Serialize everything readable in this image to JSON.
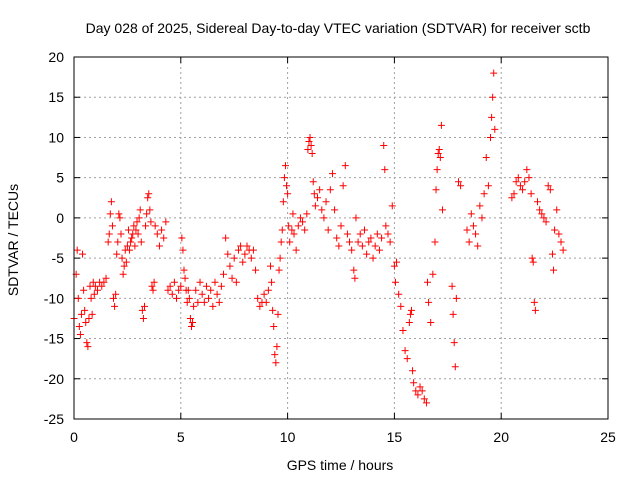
{
  "chart_data": {
    "type": "scatter",
    "title": "Day 028 of 2025, Sidereal Day-to-day VTEC variation (SDTVAR) for receiver sctb",
    "xlabel": "GPS time / hours",
    "ylabel": "SDTVAR / TECUs",
    "xlim": [
      0,
      25
    ],
    "ylim": [
      -25,
      20
    ],
    "xticks": [
      0,
      5,
      10,
      15,
      20,
      25
    ],
    "yticks": [
      -25,
      -20,
      -15,
      -10,
      -5,
      0,
      5,
      10,
      15,
      20
    ],
    "grid": true,
    "marker": "+",
    "color": "#ff0000",
    "series": [
      {
        "name": "SDTVAR",
        "points": [
          [
            0.0,
            -12.5
          ],
          [
            0.1,
            -7.0
          ],
          [
            0.15,
            -4.0
          ],
          [
            0.2,
            -10.0
          ],
          [
            0.25,
            -13.5
          ],
          [
            0.3,
            -14.5
          ],
          [
            0.35,
            -12.0
          ],
          [
            0.4,
            -4.5
          ],
          [
            0.45,
            -9.0
          ],
          [
            0.5,
            -11.5
          ],
          [
            0.55,
            -13.0
          ],
          [
            0.6,
            -15.5
          ],
          [
            0.65,
            -16.0
          ],
          [
            0.7,
            -12.5
          ],
          [
            0.75,
            -8.5
          ],
          [
            0.8,
            -10.0
          ],
          [
            0.85,
            -12.0
          ],
          [
            0.9,
            -8.0
          ],
          [
            0.95,
            -9.5
          ],
          [
            1.0,
            -8.5
          ],
          [
            1.1,
            -9.0
          ],
          [
            1.2,
            -8.0
          ],
          [
            1.3,
            -8.5
          ],
          [
            1.4,
            -8.0
          ],
          [
            1.5,
            -7.5
          ],
          [
            1.6,
            -3.0
          ],
          [
            1.65,
            -2.0
          ],
          [
            1.7,
            0.5
          ],
          [
            1.75,
            2.0
          ],
          [
            1.8,
            -1.0
          ],
          [
            1.85,
            -10.0
          ],
          [
            1.9,
            -11.0
          ],
          [
            1.95,
            -9.5
          ],
          [
            2.0,
            -4.5
          ],
          [
            2.05,
            -3.0
          ],
          [
            2.1,
            0.5
          ],
          [
            2.15,
            0.0
          ],
          [
            2.2,
            -2.0
          ],
          [
            2.25,
            -5.0
          ],
          [
            2.3,
            -7.0
          ],
          [
            2.35,
            -6.0
          ],
          [
            2.4,
            -4.0
          ],
          [
            2.45,
            -5.5
          ],
          [
            2.5,
            -3.5
          ],
          [
            2.55,
            -1.5
          ],
          [
            2.6,
            -4.0
          ],
          [
            2.65,
            -3.0
          ],
          [
            2.7,
            -2.5
          ],
          [
            2.75,
            -2.0
          ],
          [
            2.8,
            -1.0
          ],
          [
            2.85,
            -3.5
          ],
          [
            2.9,
            -1.5
          ],
          [
            2.95,
            -0.5
          ],
          [
            3.0,
            -2.0
          ],
          [
            3.05,
            0.0
          ],
          [
            3.1,
            1.0
          ],
          [
            3.15,
            -3.0
          ],
          [
            3.2,
            -11.5
          ],
          [
            3.25,
            -12.5
          ],
          [
            3.3,
            -11.0
          ],
          [
            3.35,
            -1.0
          ],
          [
            3.4,
            0.5
          ],
          [
            3.45,
            2.5
          ],
          [
            3.5,
            3.0
          ],
          [
            3.55,
            1.0
          ],
          [
            3.6,
            -0.5
          ],
          [
            3.65,
            -8.5
          ],
          [
            3.7,
            -9.0
          ],
          [
            3.75,
            -8.0
          ],
          [
            3.8,
            -1.0
          ],
          [
            3.9,
            -2.0
          ],
          [
            4.0,
            -3.5
          ],
          [
            4.1,
            -1.5
          ],
          [
            4.2,
            -2.5
          ],
          [
            4.3,
            -0.5
          ],
          [
            4.4,
            -9.0
          ],
          [
            4.5,
            -8.5
          ],
          [
            4.6,
            -9.5
          ],
          [
            4.7,
            -8.0
          ],
          [
            4.8,
            -10.0
          ],
          [
            4.9,
            -9.0
          ],
          [
            5.0,
            -8.5
          ],
          [
            5.05,
            -2.5
          ],
          [
            5.1,
            -4.0
          ],
          [
            5.15,
            -6.5
          ],
          [
            5.2,
            -7.5
          ],
          [
            5.25,
            -9.0
          ],
          [
            5.3,
            -10.5
          ],
          [
            5.35,
            -9.0
          ],
          [
            5.4,
            -10.0
          ],
          [
            5.45,
            -12.5
          ],
          [
            5.5,
            -13.5
          ],
          [
            5.55,
            -13.0
          ],
          [
            5.6,
            -11.0
          ],
          [
            5.7,
            -9.0
          ],
          [
            5.8,
            -10.5
          ],
          [
            5.9,
            -8.0
          ],
          [
            6.0,
            -9.5
          ],
          [
            6.1,
            -10.5
          ],
          [
            6.2,
            -8.5
          ],
          [
            6.3,
            -10.0
          ],
          [
            6.4,
            -9.0
          ],
          [
            6.5,
            -11.0
          ],
          [
            6.6,
            -8.0
          ],
          [
            6.7,
            -9.5
          ],
          [
            6.8,
            -10.5
          ],
          [
            6.9,
            -8.5
          ],
          [
            7.0,
            -7.0
          ],
          [
            7.1,
            -2.5
          ],
          [
            7.2,
            -4.5
          ],
          [
            7.3,
            -6.0
          ],
          [
            7.4,
            -7.5
          ],
          [
            7.5,
            -5.0
          ],
          [
            7.6,
            -8.0
          ],
          [
            7.7,
            -4.0
          ],
          [
            7.8,
            -3.5
          ],
          [
            7.9,
            -5.5
          ],
          [
            8.0,
            -4.5
          ],
          [
            8.1,
            -3.5
          ],
          [
            8.2,
            -4.0
          ],
          [
            8.3,
            -5.0
          ],
          [
            8.4,
            -4.0
          ],
          [
            8.5,
            -6.5
          ],
          [
            8.6,
            -10.0
          ],
          [
            8.7,
            -11.0
          ],
          [
            8.8,
            -10.5
          ],
          [
            8.9,
            -9.5
          ],
          [
            9.0,
            -10.5
          ],
          [
            9.1,
            -9.0
          ],
          [
            9.2,
            -6.0
          ],
          [
            9.25,
            -8.0
          ],
          [
            9.3,
            -11.5
          ],
          [
            9.35,
            -13.5
          ],
          [
            9.4,
            -17.0
          ],
          [
            9.45,
            -18.0
          ],
          [
            9.5,
            -16.0
          ],
          [
            9.55,
            -12.0
          ],
          [
            9.6,
            -6.5
          ],
          [
            9.65,
            -5.0
          ],
          [
            9.7,
            -3.0
          ],
          [
            9.75,
            -1.5
          ],
          [
            9.8,
            2.0
          ],
          [
            9.85,
            5.0
          ],
          [
            9.9,
            6.5
          ],
          [
            9.95,
            4.0
          ],
          [
            10.0,
            3.0
          ],
          [
            10.05,
            -1.0
          ],
          [
            10.1,
            -3.0
          ],
          [
            10.2,
            -1.5
          ],
          [
            10.25,
            0.5
          ],
          [
            10.3,
            -2.0
          ],
          [
            10.4,
            -4.0
          ],
          [
            10.5,
            -1.0
          ],
          [
            10.6,
            0.0
          ],
          [
            10.7,
            -0.5
          ],
          [
            10.8,
            -1.5
          ],
          [
            10.9,
            0.5
          ],
          [
            10.95,
            8.5
          ],
          [
            11.0,
            9.5
          ],
          [
            11.05,
            10.0
          ],
          [
            11.1,
            9.0
          ],
          [
            11.15,
            8.0
          ],
          [
            11.2,
            4.5
          ],
          [
            11.25,
            3.0
          ],
          [
            11.3,
            1.5
          ],
          [
            11.4,
            2.5
          ],
          [
            11.5,
            3.5
          ],
          [
            11.6,
            1.0
          ],
          [
            11.7,
            0.0
          ],
          [
            11.8,
            2.0
          ],
          [
            11.9,
            -1.5
          ],
          [
            12.0,
            3.5
          ],
          [
            12.1,
            5.5
          ],
          [
            12.2,
            1.0
          ],
          [
            12.3,
            -2.5
          ],
          [
            12.4,
            -3.5
          ],
          [
            12.5,
            -1.0
          ],
          [
            12.6,
            4.0
          ],
          [
            12.7,
            6.5
          ],
          [
            12.8,
            -2.0
          ],
          [
            12.9,
            -3.0
          ],
          [
            13.0,
            -4.0
          ],
          [
            13.1,
            -6.5
          ],
          [
            13.15,
            -7.5
          ],
          [
            13.2,
            0.0
          ],
          [
            13.3,
            -3.0
          ],
          [
            13.4,
            -2.0
          ],
          [
            13.5,
            -3.5
          ],
          [
            13.6,
            -1.5
          ],
          [
            13.7,
            -4.5
          ],
          [
            13.8,
            -3.0
          ],
          [
            13.9,
            -2.5
          ],
          [
            14.0,
            -5.0
          ],
          [
            14.1,
            -3.5
          ],
          [
            14.2,
            -2.0
          ],
          [
            14.3,
            -4.0
          ],
          [
            14.4,
            -2.5
          ],
          [
            14.5,
            9.0
          ],
          [
            14.55,
            6.0
          ],
          [
            14.6,
            -1.0
          ],
          [
            14.7,
            -2.0
          ],
          [
            14.8,
            -3.0
          ],
          [
            14.9,
            1.5
          ],
          [
            15.0,
            -6.0
          ],
          [
            15.05,
            -8.0
          ],
          [
            15.1,
            -5.5
          ],
          [
            15.2,
            -9.5
          ],
          [
            15.3,
            -11.0
          ],
          [
            15.4,
            -14.0
          ],
          [
            15.5,
            -16.5
          ],
          [
            15.6,
            -17.5
          ],
          [
            15.7,
            -13.0
          ],
          [
            15.75,
            -12.0
          ],
          [
            15.8,
            -11.5
          ],
          [
            15.85,
            -19.0
          ],
          [
            15.9,
            -20.5
          ],
          [
            16.0,
            -21.5
          ],
          [
            16.1,
            -22.0
          ],
          [
            16.2,
            -21.0
          ],
          [
            16.3,
            -21.5
          ],
          [
            16.4,
            -22.5
          ],
          [
            16.5,
            -23.0
          ],
          [
            16.55,
            -8.0
          ],
          [
            16.6,
            -10.5
          ],
          [
            16.7,
            -13.0
          ],
          [
            16.8,
            -7.0
          ],
          [
            16.9,
            -3.0
          ],
          [
            16.95,
            3.5
          ],
          [
            17.0,
            6.0
          ],
          [
            17.05,
            8.0
          ],
          [
            17.1,
            8.5
          ],
          [
            17.15,
            7.5
          ],
          [
            17.2,
            11.5
          ],
          [
            17.25,
            1.0
          ],
          [
            17.7,
            -8.5
          ],
          [
            17.75,
            -12.0
          ],
          [
            17.8,
            -15.5
          ],
          [
            17.85,
            -18.5
          ],
          [
            17.9,
            -10.0
          ],
          [
            18.0,
            4.5
          ],
          [
            18.1,
            4.0
          ],
          [
            18.4,
            -1.5
          ],
          [
            18.5,
            -3.0
          ],
          [
            18.6,
            0.5
          ],
          [
            18.7,
            -1.0
          ],
          [
            18.8,
            -2.0
          ],
          [
            18.9,
            -3.5
          ],
          [
            19.0,
            1.5
          ],
          [
            19.1,
            0.0
          ],
          [
            19.2,
            3.0
          ],
          [
            19.3,
            7.5
          ],
          [
            19.4,
            4.0
          ],
          [
            19.5,
            10.0
          ],
          [
            19.55,
            12.5
          ],
          [
            19.6,
            15.0
          ],
          [
            19.65,
            18.0
          ],
          [
            19.7,
            11.0
          ],
          [
            20.5,
            2.5
          ],
          [
            20.6,
            3.0
          ],
          [
            20.7,
            4.5
          ],
          [
            20.8,
            5.0
          ],
          [
            20.9,
            4.0
          ],
          [
            21.0,
            3.5
          ],
          [
            21.1,
            4.5
          ],
          [
            21.2,
            6.0
          ],
          [
            21.3,
            5.0
          ],
          [
            21.4,
            3.0
          ],
          [
            21.45,
            -5.0
          ],
          [
            21.5,
            -5.5
          ],
          [
            21.55,
            -10.5
          ],
          [
            21.6,
            -11.5
          ],
          [
            21.7,
            2.0
          ],
          [
            21.8,
            1.0
          ],
          [
            21.9,
            0.5
          ],
          [
            22.0,
            0.0
          ],
          [
            22.1,
            -0.5
          ],
          [
            22.2,
            4.0
          ],
          [
            22.3,
            3.5
          ],
          [
            22.4,
            -4.5
          ],
          [
            22.45,
            -6.5
          ],
          [
            22.5,
            -1.5
          ],
          [
            22.6,
            1.0
          ],
          [
            22.7,
            -2.0
          ],
          [
            22.8,
            -3.0
          ],
          [
            22.9,
            -4.0
          ]
        ]
      }
    ]
  }
}
